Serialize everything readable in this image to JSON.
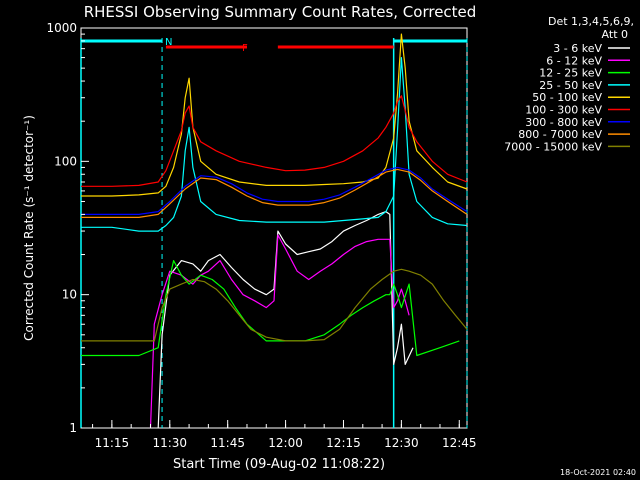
{
  "chart_data": {
    "type": "line",
    "title": "RHESSI Observing Summary Count Rates, Corrected",
    "xlabel": "Start Time (09-Aug-02 11:08:22)",
    "ylabel": "Corrected Count Rate (s⁻¹ detector⁻¹)",
    "y_scale": "log",
    "ylim": [
      1,
      1000
    ],
    "xlim": [
      "11:07",
      "12:47"
    ],
    "x_ticks": [
      "11:15",
      "11:30",
      "11:45",
      "12:00",
      "12:15",
      "12:30",
      "12:45"
    ],
    "y_ticks": [
      "1",
      "10",
      "100",
      "1000"
    ],
    "legend_header": [
      "Det 1,3,4,5,6,9,",
      "Att 0"
    ],
    "legend_position": "right",
    "footer_timestamp": "18-Oct-2021 02:40",
    "flags": {
      "F": {
        "label": "F",
        "color": "#ff0000",
        "intervals": [
          [
            "11:29",
            "11:50"
          ],
          [
            "11:58",
            "12:28"
          ]
        ]
      },
      "N": {
        "label": "N",
        "color": "#00ffff",
        "intervals": [
          [
            "11:07",
            "11:28"
          ],
          [
            "12:28",
            "12:47"
          ]
        ]
      }
    },
    "night_boundaries": [
      "11:28",
      "12:47"
    ],
    "saa_lines": [
      "11:07",
      "12:28"
    ],
    "series": [
      {
        "name": "3 - 6 keV",
        "color": "#ffffff",
        "x": [
          "11:27",
          "11:28",
          "11:30",
          "11:33",
          "11:36",
          "11:38",
          "11:40",
          "11:43",
          "11:46",
          "11:49",
          "11:52",
          "11:55",
          "11:57",
          "11:58",
          "12:00",
          "12:03",
          "12:06",
          "12:09",
          "12:12",
          "12:15",
          "12:18",
          "12:21",
          "12:24",
          "12:26",
          "12:27",
          "12:28",
          "12:29",
          "12:30",
          "12:31",
          "12:33"
        ],
        "y": [
          1,
          5,
          14,
          18,
          17,
          15,
          18,
          20,
          16,
          13,
          11,
          10,
          11,
          30,
          24,
          20,
          21,
          22,
          25,
          30,
          33,
          36,
          40,
          42,
          40,
          3,
          4,
          6,
          3,
          4
        ]
      },
      {
        "name": "6 - 12 keV",
        "color": "#ff00ff",
        "x": [
          "11:25",
          "11:26",
          "11:28",
          "11:30",
          "11:33",
          "11:36",
          "11:38",
          "11:40",
          "11:43",
          "11:46",
          "11:49",
          "11:52",
          "11:55",
          "11:57",
          "11:58",
          "12:00",
          "12:03",
          "12:06",
          "12:09",
          "12:12",
          "12:15",
          "12:18",
          "12:21",
          "12:24",
          "12:27",
          "12:28",
          "12:29",
          "12:30",
          "12:31",
          "12:32"
        ],
        "y": [
          1,
          6,
          10,
          15,
          14,
          12,
          14,
          15,
          18,
          13,
          10,
          9,
          8,
          9,
          28,
          22,
          15,
          13,
          15,
          17,
          20,
          23,
          25,
          26,
          26,
          8,
          9,
          11,
          9,
          7
        ]
      },
      {
        "name": "12 - 25 keV",
        "color": "#00ff00",
        "x": [
          "11:07",
          "11:15",
          "11:22",
          "11:27",
          "11:29",
          "11:31",
          "11:33",
          "11:35",
          "11:38",
          "11:41",
          "11:44",
          "11:47",
          "11:50",
          "11:55",
          "12:00",
          "12:05",
          "12:10",
          "12:14",
          "12:17",
          "12:20",
          "12:23",
          "12:26",
          "12:27",
          "12:28",
          "12:29",
          "12:30",
          "12:32",
          "12:34",
          "12:40",
          "12:45"
        ],
        "y": [
          3.5,
          3.5,
          3.5,
          4,
          10,
          18,
          14,
          12,
          14,
          13,
          11,
          8,
          6,
          4.5,
          4.5,
          4.5,
          5,
          6,
          7,
          8,
          9,
          10,
          10,
          12,
          10,
          8,
          12,
          3.5,
          4,
          4.5
        ]
      },
      {
        "name": "25 - 50 keV",
        "color": "#00ffff",
        "x": [
          "11:07",
          "11:15",
          "11:22",
          "11:27",
          "11:29",
          "11:31",
          "11:33",
          "11:34",
          "11:35",
          "11:36",
          "11:38",
          "11:42",
          "11:48",
          "11:55",
          "12:00",
          "12:05",
          "12:10",
          "12:15",
          "12:20",
          "12:24",
          "12:26",
          "12:28",
          "12:29",
          "12:30",
          "12:31",
          "12:32",
          "12:34",
          "12:38",
          "12:42",
          "12:47"
        ],
        "y": [
          32,
          32,
          30,
          30,
          33,
          38,
          55,
          120,
          180,
          90,
          50,
          40,
          36,
          35,
          35,
          35,
          35,
          36,
          37,
          38,
          42,
          55,
          170,
          600,
          250,
          80,
          50,
          38,
          34,
          33
        ]
      },
      {
        "name": "50 - 100 keV",
        "color": "#ffd700",
        "x": [
          "11:07",
          "11:15",
          "11:22",
          "11:27",
          "11:29",
          "11:31",
          "11:33",
          "11:34",
          "11:35",
          "11:36",
          "11:38",
          "11:42",
          "11:48",
          "11:55",
          "12:00",
          "12:05",
          "12:10",
          "12:15",
          "12:20",
          "12:24",
          "12:26",
          "12:28",
          "12:29",
          "12:30",
          "12:31",
          "12:32",
          "12:34",
          "12:38",
          "12:42",
          "12:47"
        ],
        "y": [
          55,
          55,
          56,
          58,
          65,
          90,
          160,
          300,
          420,
          180,
          100,
          80,
          70,
          66,
          66,
          66,
          67,
          68,
          70,
          75,
          90,
          150,
          320,
          900,
          500,
          200,
          120,
          90,
          70,
          62
        ]
      },
      {
        "name": "100 - 300 keV",
        "color": "#ff0000",
        "x": [
          "11:07",
          "11:15",
          "11:22",
          "11:27",
          "11:29",
          "11:31",
          "11:33",
          "11:34",
          "11:35",
          "11:36",
          "11:38",
          "11:42",
          "11:48",
          "11:55",
          "12:00",
          "12:05",
          "12:10",
          "12:15",
          "12:20",
          "12:24",
          "12:26",
          "12:28",
          "12:29",
          "12:30",
          "12:31",
          "12:32",
          "12:34",
          "12:38",
          "12:42",
          "12:47"
        ],
        "y": [
          65,
          65,
          66,
          70,
          85,
          120,
          170,
          230,
          260,
          180,
          140,
          120,
          100,
          90,
          85,
          86,
          90,
          100,
          120,
          150,
          180,
          230,
          280,
          310,
          240,
          180,
          140,
          100,
          80,
          70
        ]
      },
      {
        "name": "300 - 800 keV",
        "color": "#0000ff",
        "x": [
          "11:07",
          "11:15",
          "11:22",
          "11:27",
          "11:30",
          "11:34",
          "11:38",
          "11:42",
          "11:46",
          "11:50",
          "11:54",
          "11:58",
          "12:02",
          "12:06",
          "12:10",
          "12:14",
          "12:18",
          "12:22",
          "12:26",
          "12:29",
          "12:32",
          "12:35",
          "12:38",
          "12:42",
          "12:47"
        ],
        "y": [
          40,
          40,
          40,
          42,
          50,
          65,
          78,
          76,
          68,
          58,
          52,
          50,
          50,
          50,
          52,
          56,
          64,
          74,
          86,
          90,
          86,
          75,
          62,
          52,
          42
        ]
      },
      {
        "name": "800 - 7000 keV",
        "color": "#ff8c00",
        "x": [
          "11:07",
          "11:15",
          "11:22",
          "11:27",
          "11:30",
          "11:34",
          "11:38",
          "11:42",
          "11:46",
          "11:50",
          "11:54",
          "11:58",
          "12:02",
          "12:06",
          "12:10",
          "12:14",
          "12:18",
          "12:22",
          "12:26",
          "12:29",
          "12:32",
          "12:35",
          "12:38",
          "12:42",
          "12:47"
        ],
        "y": [
          38,
          38,
          38,
          40,
          48,
          62,
          75,
          73,
          64,
          55,
          49,
          47,
          47,
          47,
          49,
          53,
          61,
          71,
          83,
          87,
          83,
          72,
          60,
          50,
          40
        ]
      },
      {
        "name": "7000 - 15000 keV",
        "color": "#808000",
        "x": [
          "11:07",
          "11:15",
          "11:22",
          "11:26",
          "11:28",
          "11:30",
          "11:33",
          "11:36",
          "11:39",
          "11:42",
          "11:45",
          "11:48",
          "11:51",
          "11:55",
          "12:00",
          "12:05",
          "12:10",
          "12:14",
          "12:18",
          "12:22",
          "12:25",
          "12:28",
          "12:30",
          "12:32",
          "12:35",
          "12:38",
          "12:41",
          "12:44",
          "12:47"
        ],
        "y": [
          4.5,
          4.5,
          4.5,
          4.5,
          8,
          11,
          12,
          13,
          12.5,
          11,
          9,
          7,
          5.5,
          4.8,
          4.5,
          4.5,
          4.6,
          5.5,
          8,
          11,
          13,
          15,
          15.5,
          15,
          14,
          12,
          9,
          7,
          5.5
        ]
      }
    ]
  }
}
